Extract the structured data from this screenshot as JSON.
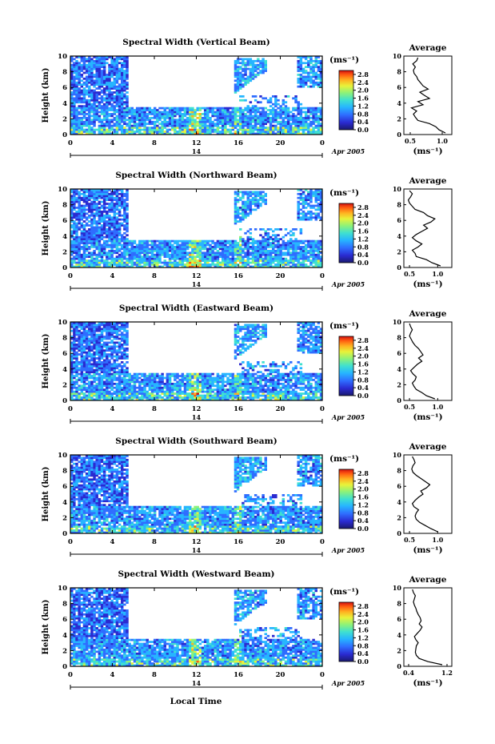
{
  "chart_data": {
    "type": "heatmap",
    "panels": [
      {
        "title": "Spectral Width (Vertical Beam)",
        "ylabel": "Height (km)",
        "avg_title": "Average",
        "avg_xlabel": "(ms⁻¹)",
        "avg_xticks": [
          "0.5",
          "1.0"
        ],
        "avg_xlim": [
          0.4,
          1.15
        ],
        "avg_profile": {
          "height": [
            0.2,
            0.6,
            1.0,
            1.4,
            1.8,
            2.2,
            2.6,
            3.0,
            3.4,
            3.8,
            4.2,
            4.6,
            5.0,
            5.4,
            5.8,
            6.2,
            6.6,
            7.0,
            7.4,
            7.8,
            8.2,
            8.6,
            9.0,
            9.4,
            9.8
          ],
          "value": [
            1.05,
            0.95,
            0.9,
            0.8,
            0.62,
            0.58,
            0.55,
            0.6,
            0.52,
            0.7,
            0.62,
            0.8,
            0.72,
            0.65,
            0.78,
            0.7,
            0.66,
            0.62,
            0.6,
            0.56,
            0.55,
            0.58,
            0.54,
            0.6,
            0.62
          ]
        }
      },
      {
        "title": "Spectral Width (Northward Beam)",
        "ylabel": "Height (km)",
        "avg_title": "Average",
        "avg_xlabel": "(ms⁻¹)",
        "avg_xticks": [
          "0.5",
          "1.0"
        ],
        "avg_xlim": [
          0.4,
          1.25
        ],
        "avg_profile": {
          "height": [
            0.2,
            0.6,
            1.0,
            1.4,
            1.8,
            2.2,
            2.6,
            3.0,
            3.4,
            3.8,
            4.2,
            4.6,
            5.0,
            5.4,
            5.8,
            6.2,
            6.6,
            7.0,
            7.4,
            7.8,
            8.2,
            8.6,
            9.0,
            9.4,
            9.8
          ],
          "value": [
            1.05,
            0.9,
            0.8,
            0.62,
            0.6,
            0.55,
            0.65,
            0.72,
            0.62,
            0.55,
            0.62,
            0.72,
            0.82,
            0.75,
            0.88,
            0.95,
            0.82,
            0.75,
            0.6,
            0.55,
            0.5,
            0.48,
            0.52,
            0.55,
            0.5
          ]
        }
      },
      {
        "title": "Spectral Width (Eastward Beam)",
        "ylabel": "Height (km)",
        "avg_title": "Average",
        "avg_xlabel": "(ms⁻¹)",
        "avg_xticks": [
          "0.5",
          "1.0"
        ],
        "avg_xlim": [
          0.4,
          1.25
        ],
        "avg_profile": {
          "height": [
            0.2,
            0.6,
            1.0,
            1.4,
            1.8,
            2.2,
            2.6,
            3.0,
            3.4,
            3.8,
            4.2,
            4.6,
            5.0,
            5.4,
            5.8,
            6.2,
            6.6,
            7.0,
            7.4,
            7.8,
            8.2,
            8.6,
            9.0,
            9.4,
            9.8
          ],
          "value": [
            0.95,
            0.8,
            0.72,
            0.62,
            0.58,
            0.55,
            0.6,
            0.62,
            0.56,
            0.52,
            0.58,
            0.64,
            0.72,
            0.66,
            0.74,
            0.7,
            0.66,
            0.6,
            0.56,
            0.53,
            0.5,
            0.52,
            0.55,
            0.52,
            0.5
          ]
        }
      },
      {
        "title": "Spectral Width (Southward Beam)",
        "ylabel": "Height (km)",
        "avg_title": "Average",
        "avg_xlabel": "(ms⁻¹)",
        "avg_xticks": [
          "0.5",
          "1.0"
        ],
        "avg_xlim": [
          0.4,
          1.25
        ],
        "avg_profile": {
          "height": [
            0.2,
            0.6,
            1.0,
            1.4,
            1.8,
            2.2,
            2.6,
            3.0,
            3.4,
            3.8,
            4.2,
            4.6,
            5.0,
            5.4,
            5.8,
            6.2,
            6.6,
            7.0,
            7.4,
            7.8,
            8.2,
            8.6,
            9.0,
            9.4,
            9.8
          ],
          "value": [
            1.0,
            0.88,
            0.78,
            0.68,
            0.62,
            0.6,
            0.62,
            0.66,
            0.58,
            0.55,
            0.6,
            0.66,
            0.74,
            0.7,
            0.8,
            0.86,
            0.78,
            0.7,
            0.62,
            0.56,
            0.54,
            0.56,
            0.6,
            0.58,
            0.55
          ]
        }
      },
      {
        "title": "Spectral Width (Westward Beam)",
        "ylabel": "Height (km)",
        "avg_title": "Average",
        "avg_xlabel": "(ms⁻¹)",
        "avg_xticks": [
          "0.4",
          "1.2"
        ],
        "avg_xlim": [
          0.3,
          1.3
        ],
        "avg_profile": {
          "height": [
            0.2,
            0.6,
            1.0,
            1.4,
            1.8,
            2.2,
            2.6,
            3.0,
            3.4,
            3.8,
            4.2,
            4.6,
            5.0,
            5.4,
            5.8,
            6.2,
            6.6,
            7.0,
            7.4,
            7.8,
            8.2,
            8.6,
            9.0,
            9.4,
            9.8
          ],
          "value": [
            1.1,
            0.8,
            0.62,
            0.56,
            0.54,
            0.55,
            0.56,
            0.6,
            0.55,
            0.52,
            0.58,
            0.64,
            0.68,
            0.62,
            0.66,
            0.64,
            0.6,
            0.57,
            0.55,
            0.52,
            0.5,
            0.52,
            0.54,
            0.5,
            0.48
          ]
        }
      }
    ],
    "xlabel": "Local Time",
    "xticks": [
      "0",
      "4",
      "8",
      "12",
      "16",
      "20",
      "0"
    ],
    "xlim": [
      0,
      24
    ],
    "date_marker": "14",
    "date_label": "Apr 2005",
    "ylim": [
      0,
      10
    ],
    "yticks": [
      "0",
      "2",
      "4",
      "6",
      "8",
      "10"
    ],
    "colorbar": {
      "unit": "(ms⁻¹)",
      "ticks": [
        "0.0",
        "0.4",
        "0.8",
        "1.2",
        "1.6",
        "2.0",
        "2.4",
        "2.8"
      ],
      "range": [
        0,
        3.0
      ],
      "colors": [
        "#1a1a6e",
        "#2a2ad0",
        "#2f6dff",
        "#26b5ff",
        "#3fe0d0",
        "#8cf27a",
        "#e8f23a",
        "#ffb020",
        "#ff5a10",
        "#d01010"
      ]
    }
  }
}
